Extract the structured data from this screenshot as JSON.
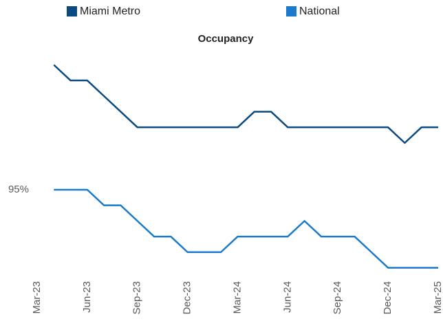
{
  "chart_data": {
    "type": "line",
    "title": "Occupancy",
    "categories": [
      "Mar-23",
      null,
      null,
      "Jun-23",
      null,
      null,
      "Sep-23",
      null,
      null,
      "Dec-23",
      null,
      null,
      "Mar-24",
      null,
      null,
      "Jun-24",
      null,
      null,
      "Sep-24",
      null,
      null,
      "Dec-24",
      null,
      null,
      "Mar-25"
    ],
    "series": [
      {
        "name": "Miami Metro",
        "color": "#0b4a80",
        "values": [
          null,
          96.6,
          96.4,
          96.4,
          96.2,
          96.0,
          95.8,
          95.8,
          95.8,
          95.8,
          95.8,
          95.8,
          95.8,
          96.0,
          96.0,
          95.8,
          95.8,
          95.8,
          95.8,
          95.8,
          95.8,
          95.8,
          95.6,
          95.8,
          95.8
        ]
      },
      {
        "name": "National",
        "color": "#1b7acc",
        "values": [
          null,
          95.0,
          95.0,
          95.0,
          94.8,
          94.8,
          94.6,
          94.4,
          94.4,
          94.2,
          94.2,
          94.2,
          94.4,
          94.4,
          94.4,
          94.4,
          94.6,
          94.4,
          94.4,
          94.4,
          94.2,
          94.0,
          94.0,
          94.0,
          94.0
        ]
      }
    ],
    "ylim": [
      93.85,
      96.7
    ],
    "yticks": [
      {
        "value": 95,
        "label": "95%"
      }
    ],
    "grid": false
  }
}
